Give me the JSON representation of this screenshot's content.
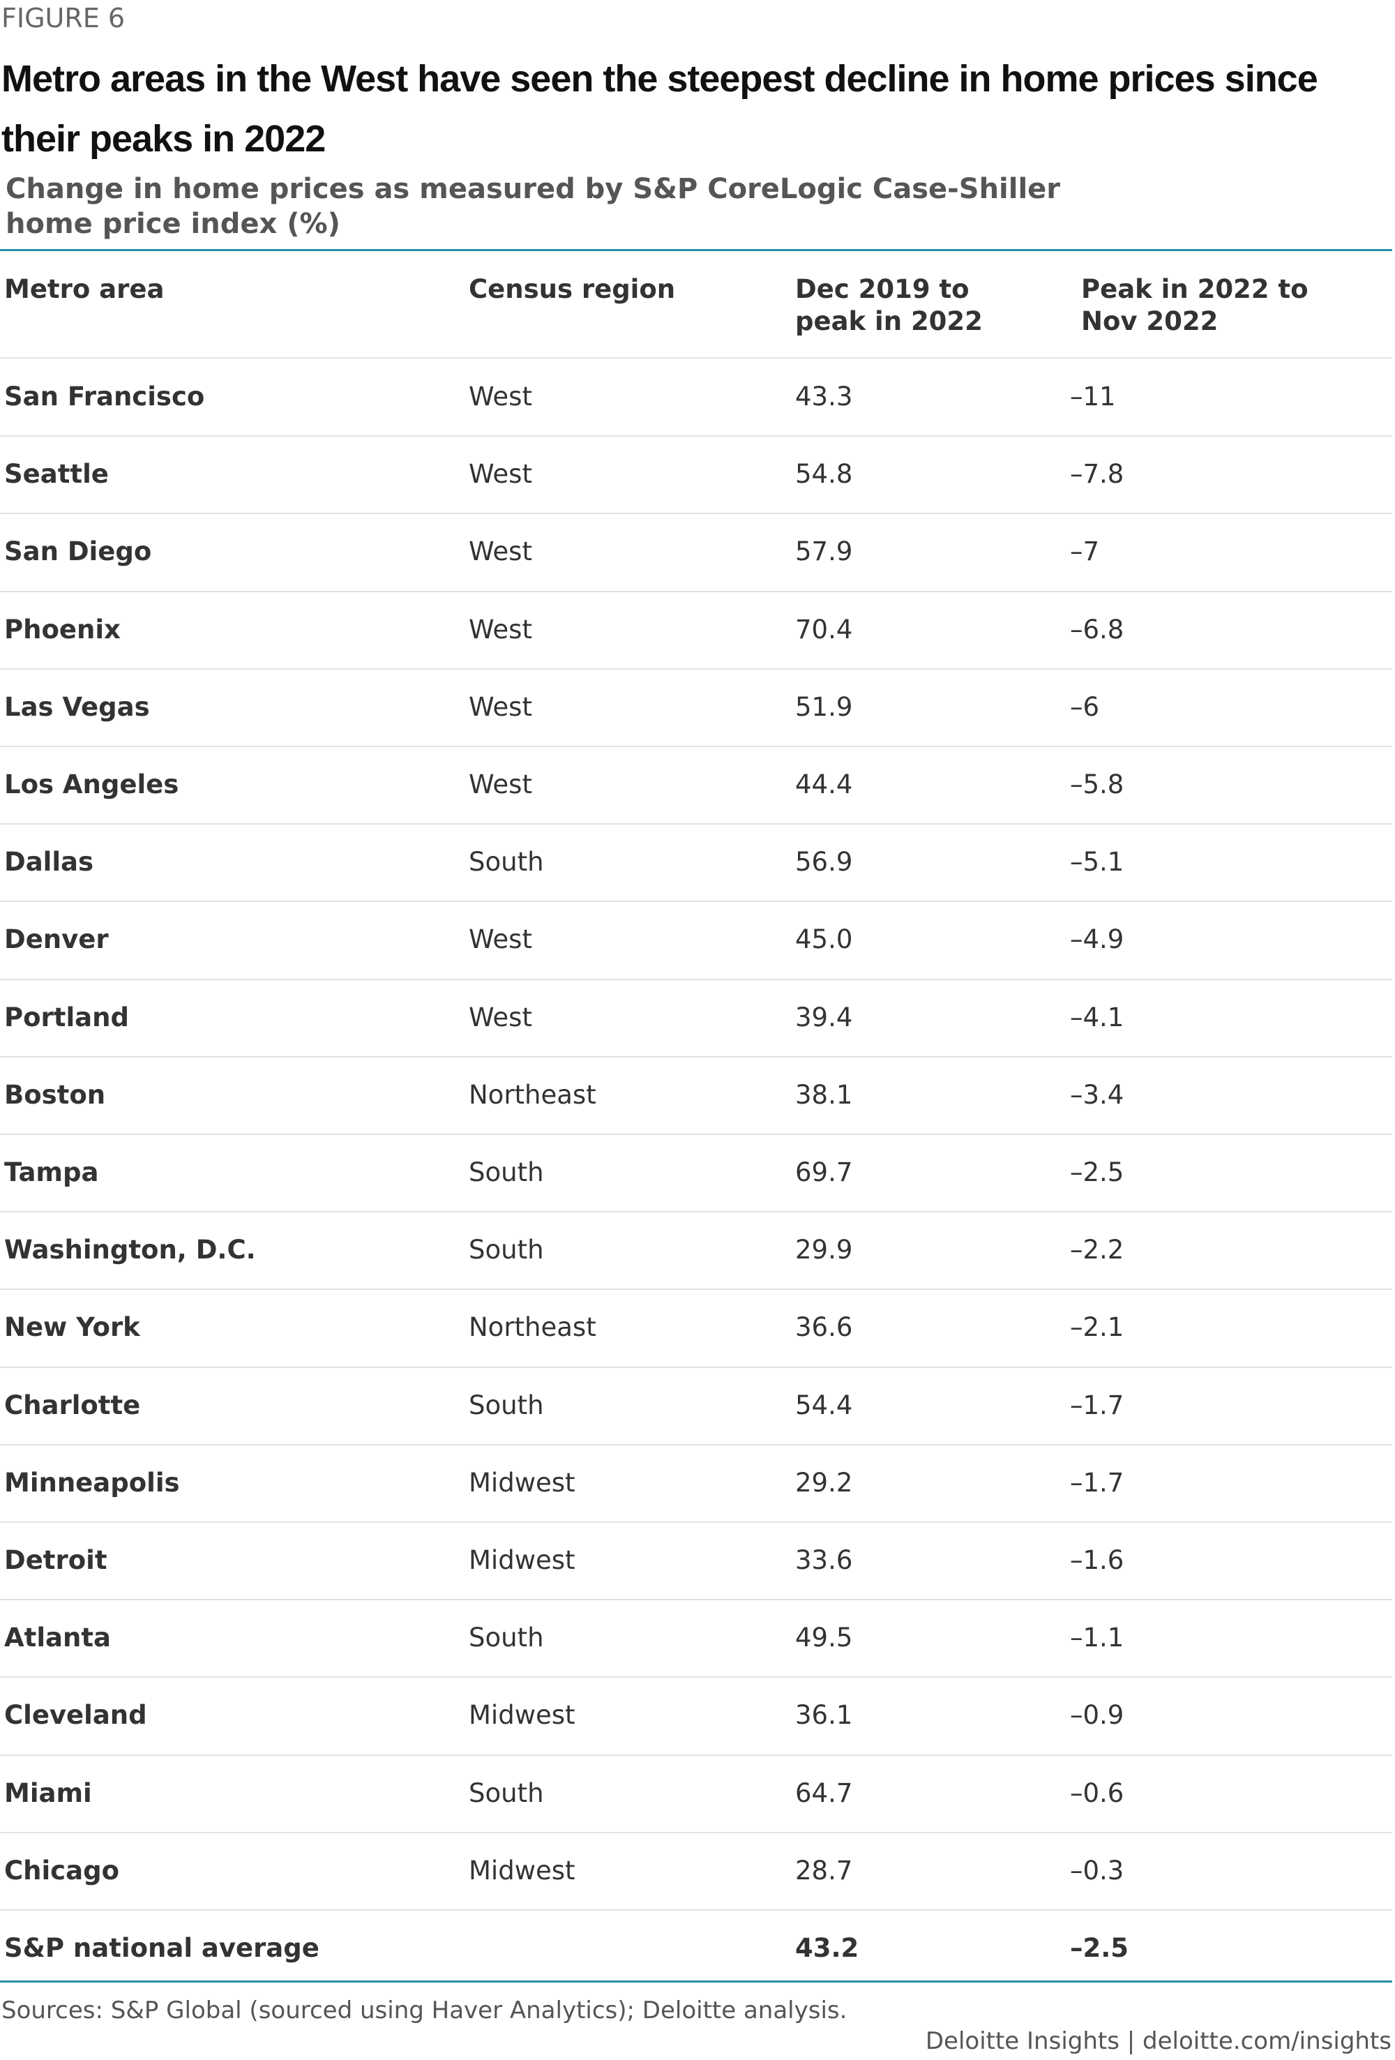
{
  "figure_label": "FIGURE 6",
  "title": "Metro areas in the West have seen the steepest decline in home prices since their peaks in 2022",
  "subtitle": "Change in home prices as measured by S&P CoreLogic Case-Shiller home price index (%)",
  "table": {
    "columns": [
      "Metro area",
      "Census region",
      "Dec 2019 to peak in 2022",
      "Peak in 2022 to Nov 2022"
    ],
    "rows": [
      [
        "San Francisco",
        "West",
        "43.3",
        "–11"
      ],
      [
        "Seattle",
        "West",
        "54.8",
        "–7.8"
      ],
      [
        "San Diego",
        "West",
        "57.9",
        "–7"
      ],
      [
        "Phoenix",
        "West",
        "70.4",
        "–6.8"
      ],
      [
        "Las Vegas",
        "West",
        "51.9",
        "–6"
      ],
      [
        "Los Angeles",
        "West",
        "44.4",
        "–5.8"
      ],
      [
        "Dallas",
        "South",
        "56.9",
        "–5.1"
      ],
      [
        "Denver",
        "West",
        "45.0",
        "–4.9"
      ],
      [
        "Portland",
        "West",
        "39.4",
        "–4.1"
      ],
      [
        "Boston",
        "Northeast",
        "38.1",
        "–3.4"
      ],
      [
        "Tampa",
        "South",
        "69.7",
        "–2.5"
      ],
      [
        "Washington, D.C.",
        "South",
        "29.9",
        "–2.2"
      ],
      [
        "New York",
        "Northeast",
        "36.6",
        "–2.1"
      ],
      [
        "Charlotte",
        "South",
        "54.4",
        "–1.7"
      ],
      [
        "Minneapolis",
        "Midwest",
        "29.2",
        "–1.7"
      ],
      [
        "Detroit",
        "Midwest",
        "33.6",
        "–1.6"
      ],
      [
        "Atlanta",
        "South",
        "49.5",
        "–1.1"
      ],
      [
        "Cleveland",
        "Midwest",
        "36.1",
        "–0.9"
      ],
      [
        "Miami",
        "South",
        "64.7",
        "–0.6"
      ],
      [
        "Chicago",
        "Midwest",
        "28.7",
        "–0.3"
      ]
    ],
    "total": [
      "S&P national average",
      "43.2",
      "–2.5"
    ]
  },
  "footer": {
    "source": "Sources: S&P Global (sourced using Haver Analytics); Deloitte analysis.",
    "credit": "Deloitte Insights | deloitte.com/insights"
  }
}
